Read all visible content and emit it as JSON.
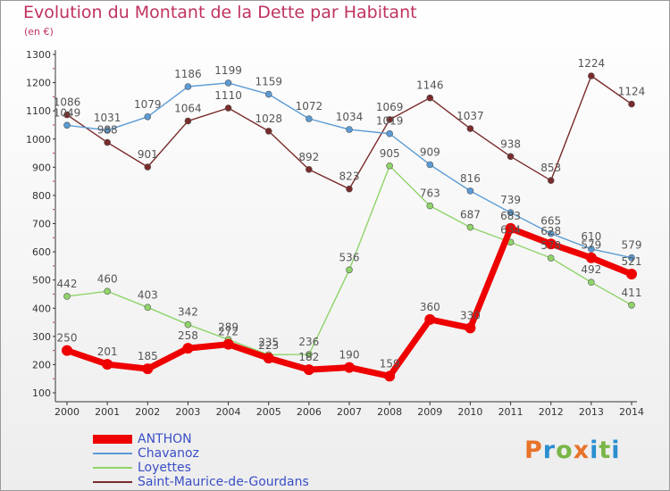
{
  "header": {
    "title": "Evolution du Montant de la Dette par Habitant",
    "subtitle": "(en €)"
  },
  "logo": {
    "text": "Proxiti",
    "colors": [
      "#e8732a",
      "#2b8fd0",
      "#7ab648",
      "#e8732a",
      "#2b8fd0",
      "#7ab648",
      "#2b8fd0"
    ]
  },
  "chart_data": {
    "type": "line",
    "categories": [
      "2000",
      "2001",
      "2002",
      "2003",
      "2004",
      "2005",
      "2006",
      "2007",
      "2008",
      "2009",
      "2010",
      "2011",
      "2012",
      "2013",
      "2014"
    ],
    "ylim": [
      100,
      1300
    ],
    "yticks": [
      100,
      200,
      300,
      400,
      500,
      600,
      700,
      800,
      900,
      1000,
      1100,
      1200,
      1300
    ],
    "grid": false,
    "legend_position": "bottom-left",
    "series": [
      {
        "name": "ANTHON",
        "color": "#ee0000",
        "thick": true,
        "values": [
          250,
          201,
          185,
          258,
          272,
          223,
          182,
          190,
          159,
          360,
          330,
          683,
          628,
          579,
          521
        ]
      },
      {
        "name": "Chavanoz",
        "color": "#5b9bd5",
        "thick": false,
        "values": [
          1049,
          1031,
          1079,
          1186,
          1199,
          1159,
          1072,
          1034,
          1019,
          909,
          816,
          739,
          665,
          610,
          579
        ]
      },
      {
        "name": "Loyettes",
        "color": "#8fd46a",
        "thick": false,
        "values": [
          442,
          460,
          403,
          342,
          289,
          235,
          236,
          536,
          905,
          763,
          687,
          634,
          578,
          492,
          411
        ]
      },
      {
        "name": "Saint-Maurice-de-Gourdans",
        "color": "#7a2b2b",
        "thick": false,
        "values": [
          1086,
          988,
          901,
          1064,
          1110,
          1028,
          892,
          823,
          1069,
          1146,
          1037,
          938,
          853,
          1224,
          1124
        ]
      }
    ]
  }
}
